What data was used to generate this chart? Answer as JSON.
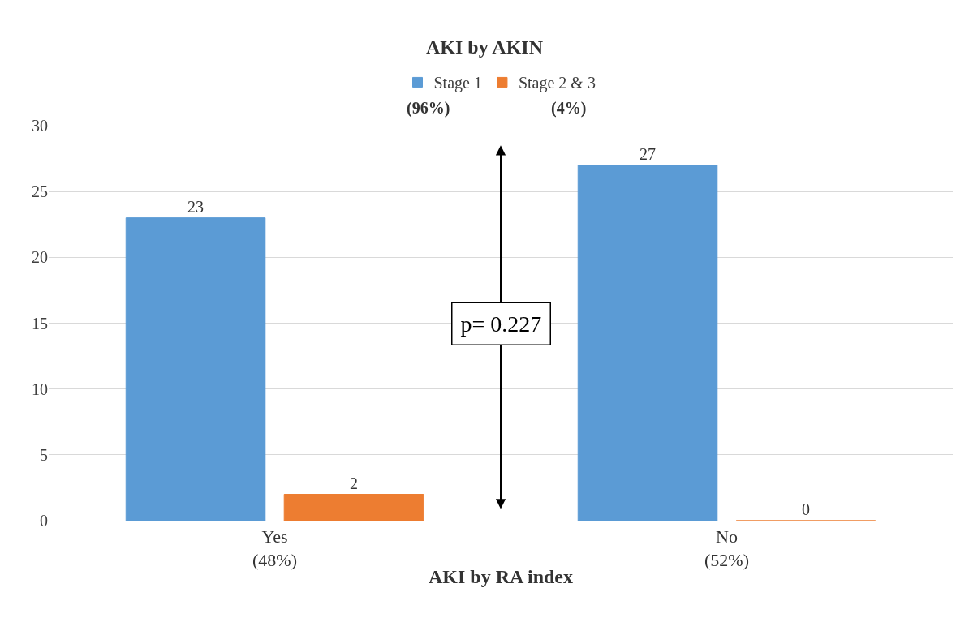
{
  "chart_data": {
    "type": "bar",
    "title": "AKI by AKIN",
    "xlabel": "AKI by RA index",
    "categories": [
      "Yes\n(48%)",
      "No\n(52%)"
    ],
    "series": [
      {
        "name": "Stage 1",
        "color": "#5b9bd5",
        "values": [
          23,
          27
        ]
      },
      {
        "name": "Stage 2 & 3",
        "color": "#ed7d31",
        "values": [
          2,
          0
        ]
      }
    ],
    "ylim": [
      0,
      30
    ],
    "yticks": [
      0,
      5,
      10,
      15,
      20,
      25,
      30
    ],
    "grid": "y",
    "legend": "top",
    "data_labels": true,
    "annotations": [
      "(96%)",
      "(4%)",
      "p= 0.227"
    ]
  }
}
